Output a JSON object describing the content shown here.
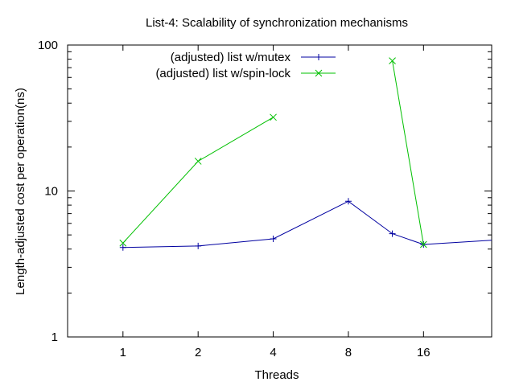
{
  "chart_data": {
    "type": "line",
    "title": "List-4: Scalability of synchronization mechanisms",
    "xlabel": "Threads",
    "ylabel": "Length-adjusted cost per operation(ns)",
    "xscale": "log2",
    "yscale": "log10",
    "xlim": [
      0.6,
      30
    ],
    "ylim": [
      1,
      100
    ],
    "xticks": [
      {
        "value": 1,
        "label": "1"
      },
      {
        "value": 2,
        "label": "2"
      },
      {
        "value": 4,
        "label": "4"
      },
      {
        "value": 8,
        "label": "8"
      },
      {
        "value": 16,
        "label": "16"
      }
    ],
    "yticks": [
      {
        "value": 1,
        "label": "1"
      },
      {
        "value": 10,
        "label": "10"
      },
      {
        "value": 100,
        "label": "100"
      }
    ],
    "grid": false,
    "legend_position": "top-center",
    "series": [
      {
        "name": "(adjusted) list w/mutex",
        "color": "#0000a0",
        "marker": "plus",
        "segments": [
          [
            [
              1,
              4.1
            ],
            [
              2,
              4.2
            ],
            [
              4,
              4.7
            ],
            [
              8,
              8.5
            ],
            [
              12,
              5.1
            ],
            [
              16,
              4.3
            ],
            [
              30,
              4.6
            ]
          ]
        ]
      },
      {
        "name": "(adjusted) list w/spin-lock",
        "color": "#00c000",
        "marker": "x",
        "segments": [
          [
            [
              1,
              4.4
            ],
            [
              2,
              16
            ],
            [
              4,
              32
            ]
          ],
          [
            [
              12,
              78
            ],
            [
              16,
              4.3
            ]
          ]
        ]
      }
    ]
  }
}
